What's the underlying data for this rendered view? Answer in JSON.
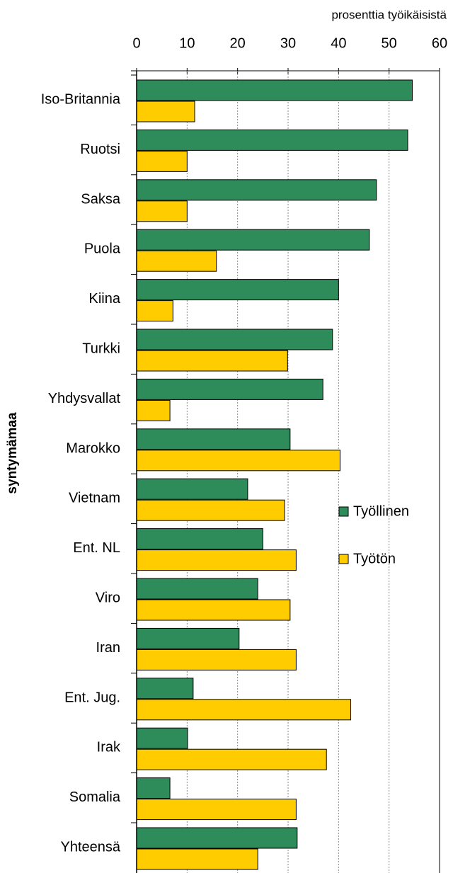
{
  "chart_data": {
    "type": "bar",
    "orientation": "horizontal",
    "x_axis_label": "prosenttia työikäisistä",
    "y_axis_label": "syntymämaa",
    "categories": [
      "Iso-Britannia",
      "Ruotsi",
      "Saksa",
      "Puola",
      "Kiina",
      "Turkki",
      "Yhdysvallat",
      "Marokko",
      "Vietnam",
      "Ent. NL",
      "Viro",
      "Iran",
      "Ent. Jug.",
      "Irak",
      "Somalia",
      "Yhteensä"
    ],
    "series": [
      {
        "name": "Työllinen",
        "color": "#2e8b5a",
        "values": [
          54.6,
          53.7,
          47.5,
          46.1,
          40,
          38.8,
          36.9,
          30.4,
          22,
          25,
          24,
          20.3,
          11.2,
          10.1,
          6.6,
          31.8
        ]
      },
      {
        "name": "Työtön",
        "color": "#ffcc00",
        "values": [
          11.5,
          10,
          10,
          15.8,
          7.2,
          29.9,
          6.6,
          40.3,
          29.3,
          31.6,
          30.4,
          31.6,
          42.4,
          37.6,
          31.6,
          24
        ]
      }
    ],
    "xlim": [
      0,
      60
    ],
    "xticks": [
      0,
      10,
      20,
      30,
      40,
      50,
      60
    ],
    "grid": true,
    "legend": "right"
  }
}
